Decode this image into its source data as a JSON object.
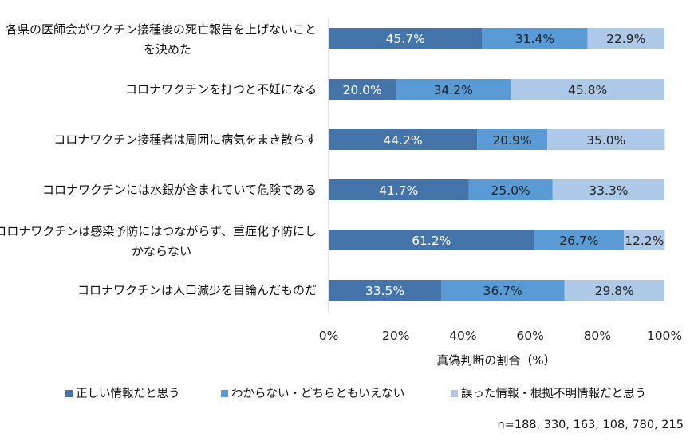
{
  "chart_data": {
    "type": "bar",
    "orientation": "horizontal",
    "stacked": true,
    "categories": [
      [
        "各県の医師会がワクチン接種後の死亡報告を上げないこと",
        "を決めた"
      ],
      [
        "コロナワクチンを打つと不妊になる"
      ],
      [
        "コロナワクチン接種者は周囲に病気をまき散らす"
      ],
      [
        "コロナワクチンには水銀が含まれていて危険である"
      ],
      [
        "コロナワクチンは感染予防にはつながらず、重症化予防にし",
        "かならない"
      ],
      [
        "コロナワクチンは人口減少を目論んだものだ"
      ]
    ],
    "series": [
      {
        "name": "正しい情報だと思う",
        "color": "#4474a9",
        "values": [
          45.7,
          20.0,
          44.2,
          41.7,
          61.2,
          33.5
        ],
        "labels": [
          "45.7%",
          "20.0%",
          "44.2%",
          "41.7%",
          "61.2%",
          "33.5%"
        ]
      },
      {
        "name": "わからない・どちらともいえない",
        "color": "#5b9bd5",
        "values": [
          31.4,
          34.2,
          20.9,
          25.0,
          26.7,
          36.7
        ],
        "labels": [
          "31.4%",
          "34.2%",
          "20.9%",
          "25.0%",
          "26.7%",
          "36.7%"
        ]
      },
      {
        "name": "誤った情報・根拠不明情報だと思う",
        "color": "#aec8e8",
        "values": [
          22.9,
          45.8,
          35.0,
          33.3,
          12.2,
          29.8
        ],
        "labels": [
          "22.9%",
          "45.8%",
          "35.0%",
          "33.3%",
          "12.2%",
          "29.8%"
        ]
      }
    ],
    "label_colors": [
      "#ffffff",
      "#222222",
      "#222222"
    ],
    "xticks": [
      "0%",
      "20%",
      "40%",
      "60%",
      "80%",
      "100%"
    ],
    "xlim": [
      0,
      100
    ],
    "xlabel": "真偽判断の割合（%）",
    "ylabel": "",
    "title": "",
    "grid": false,
    "legend_position": "bottom",
    "note": "n=188, 330, 163, 108, 780, 215"
  }
}
